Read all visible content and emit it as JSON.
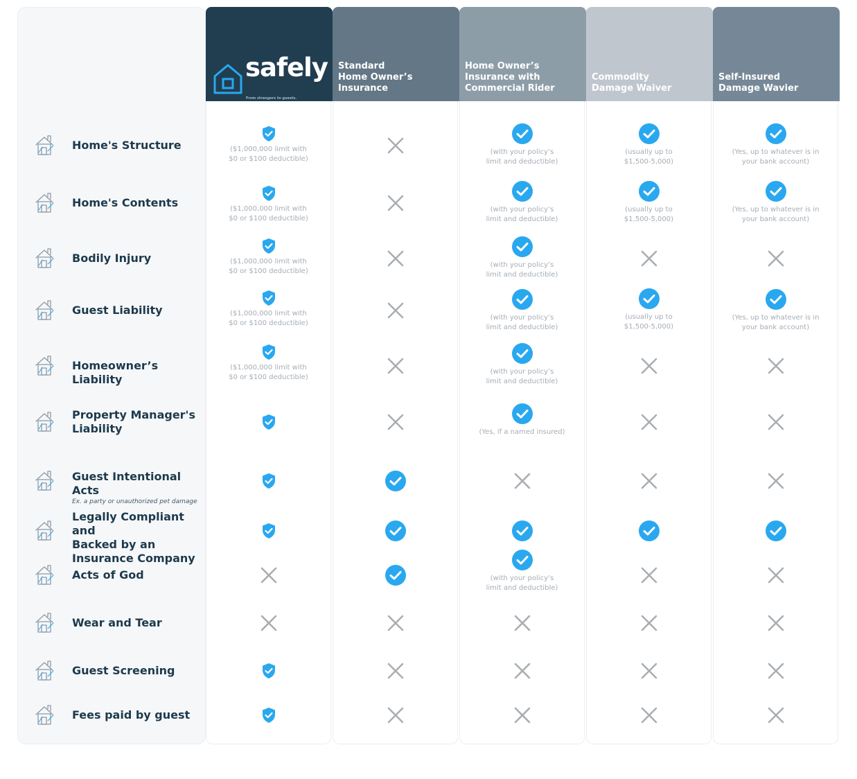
{
  "brand": {
    "name": "safely",
    "tagline": "From strangers to guests."
  },
  "columns": [
    {
      "id": "safely",
      "label": "",
      "color": "#213e51"
    },
    {
      "id": "standard",
      "label": "Standard\nHome Owner’s Insurance",
      "color": "#637786"
    },
    {
      "id": "commercial",
      "label": "Home Owner’s\nInsurance with\nCommercial Rider",
      "color": "#8d9da8"
    },
    {
      "id": "commodity",
      "label": "Commodity\nDamage Waiver",
      "color": "#c0c6ce"
    },
    {
      "id": "selfinsured",
      "label": "Self-Insured\nDamage Wavier",
      "color": "#768897"
    }
  ],
  "colors": {
    "check": "#2aa8ef",
    "cross": "#a9aeb3"
  },
  "rows": [
    {
      "label": "Home's Structure",
      "sub": "",
      "icon": "house-structure-icon",
      "cells": [
        {
          "mark": "shield",
          "note": "($1,000,000 limit with\n$0 or $100 deductible)"
        },
        {
          "mark": "cross",
          "note": ""
        },
        {
          "mark": "check",
          "note": "(with your policy’s\nlimit and deductible)"
        },
        {
          "mark": "check",
          "note": "(usually up to\n$1,500-5,000)"
        },
        {
          "mark": "check",
          "note": "(Yes, up to whatever is in\nyour bank account)"
        }
      ]
    },
    {
      "label": "Home's Contents",
      "sub": "",
      "icon": "home-contents-icon",
      "cells": [
        {
          "mark": "shield",
          "note": "($1,000,000 limit with\n$0 or $100 deductible)"
        },
        {
          "mark": "cross",
          "note": ""
        },
        {
          "mark": "check",
          "note": "(with your policy’s\nlimit and deductible)"
        },
        {
          "mark": "check",
          "note": "(usually up to\n$1,500-5,000)"
        },
        {
          "mark": "check",
          "note": "(Yes, up to whatever is in\nyour bank account)"
        }
      ]
    },
    {
      "label": "Bodily Injury",
      "sub": "",
      "icon": "bodily-injury-icon",
      "cells": [
        {
          "mark": "shield",
          "note": "($1,000,000 limit with\n$0 or $100 deductible)"
        },
        {
          "mark": "cross",
          "note": ""
        },
        {
          "mark": "check",
          "note": "(with your policy’s\nlimit and deductible)"
        },
        {
          "mark": "cross",
          "note": ""
        },
        {
          "mark": "cross",
          "note": ""
        }
      ]
    },
    {
      "label": "Guest Liability",
      "sub": "",
      "icon": "guest-liability-icon",
      "cells": [
        {
          "mark": "shield",
          "note": "($1,000,000 limit with\n$0 or $100 deductible)"
        },
        {
          "mark": "cross",
          "note": ""
        },
        {
          "mark": "check",
          "note": "(with your policy’s\nlimit and deductible)"
        },
        {
          "mark": "check",
          "note": "(usually up to\n$1,500-5,000)"
        },
        {
          "mark": "check",
          "note": "(Yes, up to whatever is in\nyour bank account)"
        }
      ]
    },
    {
      "label": "Homeowner’s Liability",
      "sub": "",
      "icon": "homeowner-liability-icon",
      "cells": [
        {
          "mark": "shield",
          "note": "($1,000,000 limit with\n$0 or $100 deductible)"
        },
        {
          "mark": "cross",
          "note": ""
        },
        {
          "mark": "check",
          "note": "(with your policy’s\nlimit and deductible)"
        },
        {
          "mark": "cross",
          "note": ""
        },
        {
          "mark": "cross",
          "note": ""
        }
      ]
    },
    {
      "label": "Property Manager's\nLiability",
      "sub": "",
      "icon": "property-manager-icon",
      "cells": [
        {
          "mark": "shield",
          "note": ""
        },
        {
          "mark": "cross",
          "note": ""
        },
        {
          "mark": "check",
          "note": "(Yes, if a named insured)"
        },
        {
          "mark": "cross",
          "note": ""
        },
        {
          "mark": "cross",
          "note": ""
        }
      ]
    },
    {
      "label": "Guest Intentional Acts",
      "sub": "Ex. a party or unauthorized pet damage",
      "icon": "intentional-acts-icon",
      "cells": [
        {
          "mark": "shield",
          "note": ""
        },
        {
          "mark": "check",
          "note": ""
        },
        {
          "mark": "cross",
          "note": ""
        },
        {
          "mark": "cross",
          "note": ""
        },
        {
          "mark": "cross",
          "note": ""
        }
      ]
    },
    {
      "label": "Legally Compliant and\nBacked by an\nInsurance Company",
      "sub": "",
      "icon": "legal-compliance-icon",
      "cells": [
        {
          "mark": "shield",
          "note": ""
        },
        {
          "mark": "check",
          "note": ""
        },
        {
          "mark": "check",
          "note": ""
        },
        {
          "mark": "check",
          "note": ""
        },
        {
          "mark": "check",
          "note": ""
        }
      ]
    },
    {
      "label": "Acts of God",
      "sub": "",
      "icon": "acts-of-god-icon",
      "cells": [
        {
          "mark": "cross",
          "note": ""
        },
        {
          "mark": "check",
          "note": ""
        },
        {
          "mark": "check",
          "note": "(with your policy’s\nlimit and deductible)"
        },
        {
          "mark": "cross",
          "note": ""
        },
        {
          "mark": "cross",
          "note": ""
        }
      ]
    },
    {
      "label": "Wear and Tear",
      "sub": "",
      "icon": "wear-and-tear-icon",
      "cells": [
        {
          "mark": "cross",
          "note": ""
        },
        {
          "mark": "cross",
          "note": ""
        },
        {
          "mark": "cross",
          "note": ""
        },
        {
          "mark": "cross",
          "note": ""
        },
        {
          "mark": "cross",
          "note": ""
        }
      ]
    },
    {
      "label": "Guest Screening",
      "sub": "",
      "icon": "guest-screening-icon",
      "cells": [
        {
          "mark": "shield",
          "note": ""
        },
        {
          "mark": "cross",
          "note": ""
        },
        {
          "mark": "cross",
          "note": ""
        },
        {
          "mark": "cross",
          "note": ""
        },
        {
          "mark": "cross",
          "note": ""
        }
      ]
    },
    {
      "label": "Fees paid by guest",
      "sub": "",
      "icon": "fees-icon",
      "cells": [
        {
          "mark": "shield",
          "note": ""
        },
        {
          "mark": "cross",
          "note": ""
        },
        {
          "mark": "cross",
          "note": ""
        },
        {
          "mark": "cross",
          "note": ""
        },
        {
          "mark": "cross",
          "note": ""
        }
      ]
    }
  ]
}
